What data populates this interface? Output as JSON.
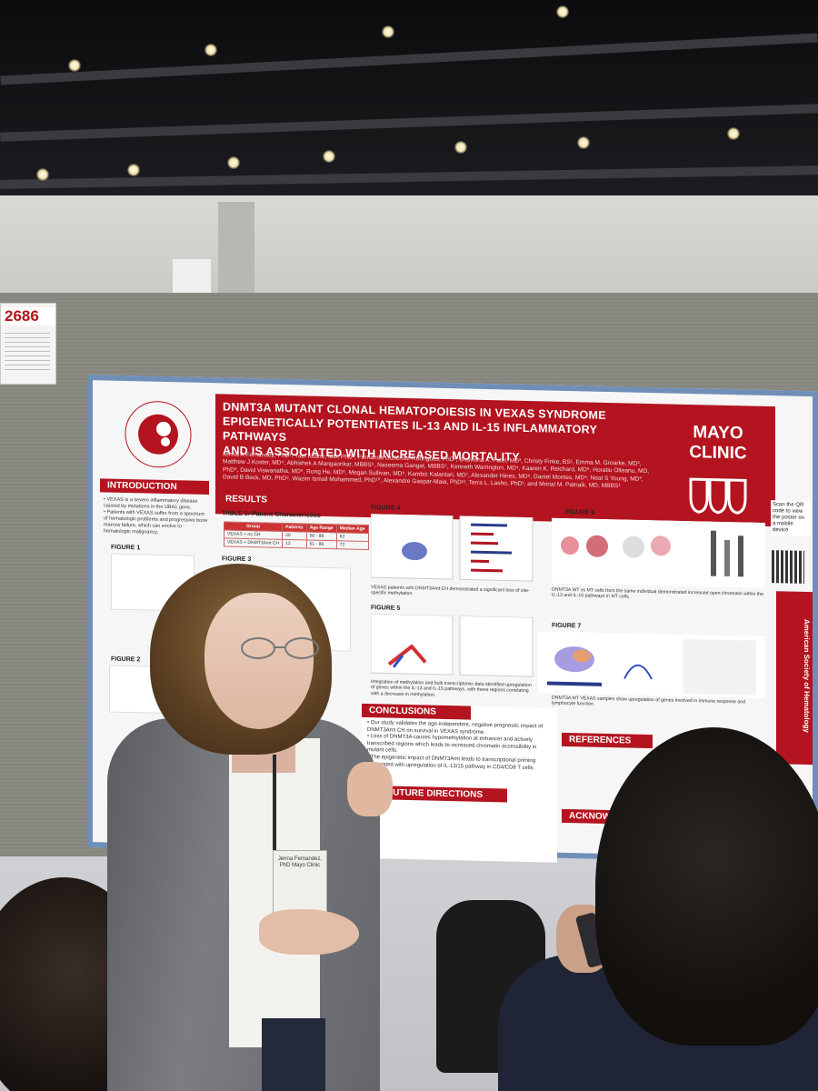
{
  "booth": {
    "number": "2686"
  },
  "poster": {
    "title_lines": [
      "DNMT3A MUTANT CLONAL HEMATOPOIESIS IN VEXAS SYNDROME",
      "EPIGENETICALLY POTENTIATES IL-13 AND IL-15 INFLAMMATORY PATHWAYS",
      "AND IS ASSOCIATED WITH INCREASED MORTALITY"
    ],
    "authors": "Jenna A Fernandez, PhD¹, Yael Kusne, MD, PhD², Fernanda Gutierrez-Rodrigues, PhD³, Bhavisha A. Patel, MD³, Christy Finke, BS¹, Emma M. Groarke, MD³, Matthew J Koster, MD⁴, Abhishek A Mangaonkar, MBBS⁵, Naseema Gangat, MBBS⁵, Kenneth Warrington, MD⁴, Kaaren K. Reichard, MD⁶, Horatiu Olteanu, MD, PhD⁶, David Viswanatha, MD⁶, Rong He, MD⁶, Megan Sullivan, MD⁶, Kambiz Kalantari, MD⁷, Alexander Hines, MD⁸, Daniel Montes, MD⁸, Neal S Young, MD³, David B Beck, MD, PhD⁹, Wazim Ismail Mohammed, PhD¹⁰, Alexandre Gaspar-Maia, PhD¹¹, Terra L. Lasho, PhD¹, and Mrinal M. Patnaik, MD, MBBS¹",
    "institution_logo": "MAYO CLINIC",
    "ash_logo": "AMERICAN SOCIETY OF HEMATOLOGY",
    "sidebar_text": "American Society of Hematology",
    "scan_text": "Scan the QR code to view the poster on a mobile device",
    "sections": {
      "introduction": "INTRODUCTION",
      "results": "RESULTS",
      "conclusions": "CONCLUSIONS",
      "future": "FUTURE DIRECTIONS",
      "references": "REFERENCES",
      "ack": "ACKNOWLEDGEMENTS"
    },
    "intro_text": [
      "• VEXAS is a severe inflammatory disease caused by mutations in the UBA1 gene.",
      "• Patients with VEXAS suffer from a spectrum of hematologic problems and progressive bone marrow failure, which can evolve to hematologic malignancy."
    ],
    "figures": [
      "FIGURE 1",
      "FIGURE 2",
      "FIGURE 3",
      "FIGURE 4",
      "FIGURE 5",
      "FIGURE 6",
      "FIGURE 7"
    ],
    "table_title": "TABLE 1: Patient Characteristics",
    "table": {
      "headers": [
        "Group",
        "Patients",
        "Age Range",
        "Median Age"
      ],
      "rows": [
        [
          "VEXAS + no CH",
          "20",
          "56 - 88",
          "62"
        ],
        [
          "VEXAS + DNMT3Amt CH",
          "12",
          "61 - 89",
          "72"
        ]
      ]
    },
    "conclusions": [
      "• Our study validates the age-independent, negative prognostic impact of DNMT3Amt CH on survival in VEXAS syndrome.",
      "• Loss of DNMT3A causes hypomethylation at enhancer and actively transcribed regions which leads to increased chromatin accessibility in mutant cells.",
      "• The epigenetic impact of DNMT3Amt leads to transcriptional priming associated with upregulation of IL-13/15 pathway in CD4/CD8 T cells."
    ],
    "fig6_caption": "DNMT3A WT vs MT cells from the same individual demonstrated increased open chromatin within the IL-13 and IL-15 pathways in MT cells.",
    "fig7_caption": "DNMT3A MT VEXAS samples show upregulation of genes involved in immune response and lymphocyte function.",
    "fig4_caption": "VEXAS patients with DNMT3Amt CH demonstrated a significant loss of site-specific methylation.",
    "fig5_caption": "Integration of methylation and bulk transcriptomic data identified upregulation of genes within the IL-13 and IL-15 pathways, with these regions correlating with a decrease in methylation."
  },
  "presenter_badge": "Jenna Fernandez, PhD Mayo Clinic"
}
